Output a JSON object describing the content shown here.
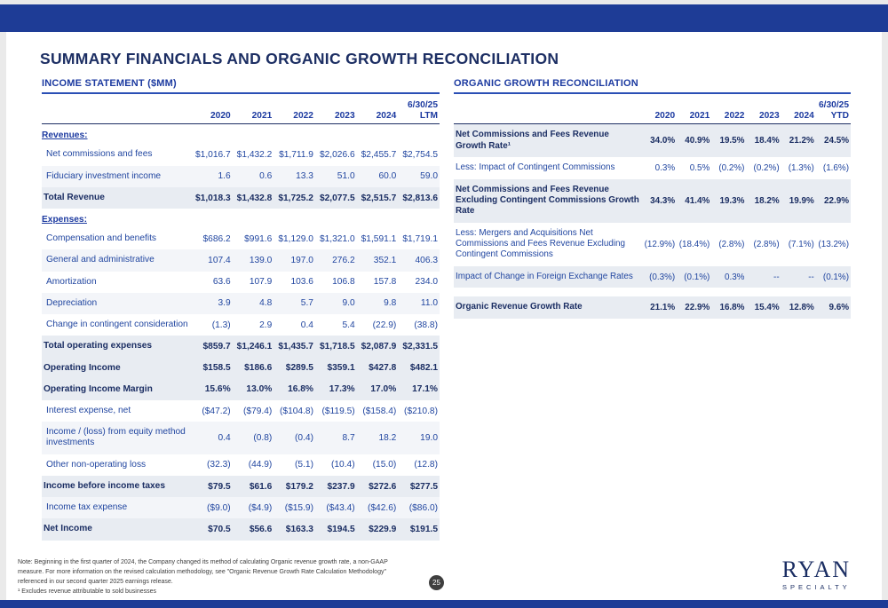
{
  "title": "SUMMARY FINANCIALS AND ORGANIC GROWTH RECONCILIATION",
  "page_number": "25",
  "colors": {
    "bar_blue": "#1e3c96",
    "heading_blue": "#1c3aa0",
    "table_text_blue": "#2146a0",
    "dark_navy": "#1b2e63",
    "total_row_shade": "#e8ecf2"
  },
  "income_statement": {
    "heading": "INCOME STATEMENT ($MM)",
    "columns": [
      "2020",
      "2021",
      "2022",
      "2023",
      "2024",
      "6/30/25\nLTM"
    ],
    "rows": [
      {
        "type": "section",
        "label": "Revenues:"
      },
      {
        "type": "data",
        "label": "Net commissions and fees",
        "values": [
          "$1,016.7",
          "$1,432.2",
          "$1,711.9",
          "$2,026.6",
          "$2,455.7",
          "$2,754.5"
        ]
      },
      {
        "type": "data",
        "shaded": true,
        "label": "Fiduciary investment income",
        "values": [
          "1.6",
          "0.6",
          "13.3",
          "51.0",
          "60.0",
          "59.0"
        ]
      },
      {
        "type": "total",
        "label": "Total Revenue",
        "values": [
          "$1,018.3",
          "$1,432.8",
          "$1,725.2",
          "$2,077.5",
          "$2,515.7",
          "$2,813.6"
        ]
      },
      {
        "type": "section",
        "label": "Expenses:"
      },
      {
        "type": "data",
        "label": "Compensation and benefits",
        "values": [
          "$686.2",
          "$991.6",
          "$1,129.0",
          "$1,321.0",
          "$1,591.1",
          "$1,719.1"
        ]
      },
      {
        "type": "data",
        "shaded": true,
        "label": "General and administrative",
        "values": [
          "107.4",
          "139.0",
          "197.0",
          "276.2",
          "352.1",
          "406.3"
        ]
      },
      {
        "type": "data",
        "label": "Amortization",
        "values": [
          "63.6",
          "107.9",
          "103.6",
          "106.8",
          "157.8",
          "234.0"
        ]
      },
      {
        "type": "data",
        "shaded": true,
        "label": "Depreciation",
        "values": [
          "3.9",
          "4.8",
          "5.7",
          "9.0",
          "9.8",
          "11.0"
        ]
      },
      {
        "type": "data",
        "label": "Change in contingent consideration",
        "values": [
          "(1.3)",
          "2.9",
          "0.4",
          "5.4",
          "(22.9)",
          "(38.8)"
        ]
      },
      {
        "type": "total",
        "label": "Total operating expenses",
        "values": [
          "$859.7",
          "$1,246.1",
          "$1,435.7",
          "$1,718.5",
          "$2,087.9",
          "$2,331.5"
        ]
      },
      {
        "type": "total",
        "label": "Operating Income",
        "values": [
          "$158.5",
          "$186.6",
          "$289.5",
          "$359.1",
          "$427.8",
          "$482.1"
        ]
      },
      {
        "type": "total",
        "label": "Operating Income Margin",
        "values": [
          "15.6%",
          "13.0%",
          "16.8%",
          "17.3%",
          "17.0%",
          "17.1%"
        ]
      },
      {
        "type": "data",
        "label": "Interest expense, net",
        "values": [
          "($47.2)",
          "($79.4)",
          "($104.8)",
          "($119.5)",
          "($158.4)",
          "($210.8)"
        ]
      },
      {
        "type": "data",
        "shaded": true,
        "label": "Income / (loss) from equity method investments",
        "values": [
          "0.4",
          "(0.8)",
          "(0.4)",
          "8.7",
          "18.2",
          "19.0"
        ]
      },
      {
        "type": "data",
        "label": "Other non-operating loss",
        "values": [
          "(32.3)",
          "(44.9)",
          "(5.1)",
          "(10.4)",
          "(15.0)",
          "(12.8)"
        ]
      },
      {
        "type": "total",
        "label": "Income before income taxes",
        "values": [
          "$79.5",
          "$61.6",
          "$179.2",
          "$237.9",
          "$272.6",
          "$277.5"
        ]
      },
      {
        "type": "data",
        "shaded": true,
        "label": "Income tax expense",
        "values": [
          "($9.0)",
          "($4.9)",
          "($15.9)",
          "($43.4)",
          "($42.6)",
          "($86.0)"
        ]
      },
      {
        "type": "total",
        "label": "Net Income",
        "values": [
          "$70.5",
          "$56.6",
          "$163.3",
          "$194.5",
          "$229.9",
          "$191.5"
        ]
      }
    ]
  },
  "organic_growth": {
    "heading": "ORGANIC GROWTH RECONCILIATION",
    "columns": [
      "2020",
      "2021",
      "2022",
      "2023",
      "2024",
      "6/30/25\nYTD"
    ],
    "rows": [
      {
        "type": "total",
        "label": "Net Commissions and Fees Revenue Growth Rate¹",
        "values": [
          "34.0%",
          "40.9%",
          "19.5%",
          "18.4%",
          "21.2%",
          "24.5%"
        ]
      },
      {
        "type": "data",
        "label": "Less: Impact of Contingent Commissions",
        "values": [
          "0.3%",
          "0.5%",
          "(0.2%)",
          "(0.2%)",
          "(1.3%)",
          "(1.6%)"
        ]
      },
      {
        "type": "total",
        "label": "Net Commissions and Fees Revenue Excluding Contingent Commissions Growth Rate",
        "values": [
          "34.3%",
          "41.4%",
          "19.3%",
          "18.2%",
          "19.9%",
          "22.9%"
        ]
      },
      {
        "type": "data",
        "label": "Less: Mergers and Acquisitions Net Commissions and Fees Revenue Excluding Contingent Commissions",
        "values": [
          "(12.9%)",
          "(18.4%)",
          "(2.8%)",
          "(2.8%)",
          "(7.1%)",
          "(13.2%)"
        ]
      },
      {
        "type": "data",
        "shaded": true,
        "label": "Impact of Change in Foreign Exchange Rates",
        "values": [
          "(0.3%)",
          "(0.1%)",
          "0.3%",
          "--",
          "--",
          "(0.1%)"
        ]
      },
      {
        "type": "spacer"
      },
      {
        "type": "total",
        "label": "Organic Revenue Growth Rate",
        "values": [
          "21.1%",
          "22.9%",
          "16.8%",
          "15.4%",
          "12.8%",
          "9.6%"
        ]
      }
    ]
  },
  "footnote": {
    "lines": [
      "Note: Beginning in the first quarter of 2024, the Company changed its method of calculating Organic revenue growth rate, a non-GAAP",
      "measure. For more information on the revised calculation methodology, see \"Organic Revenue Growth Rate Calculation Methodology\"",
      "referenced in our second quarter 2025 earnings release.",
      "¹ Excludes revenue attributable to sold businesses"
    ]
  },
  "logo": {
    "name": "RYAN",
    "subtext": "SPECIALTY"
  }
}
